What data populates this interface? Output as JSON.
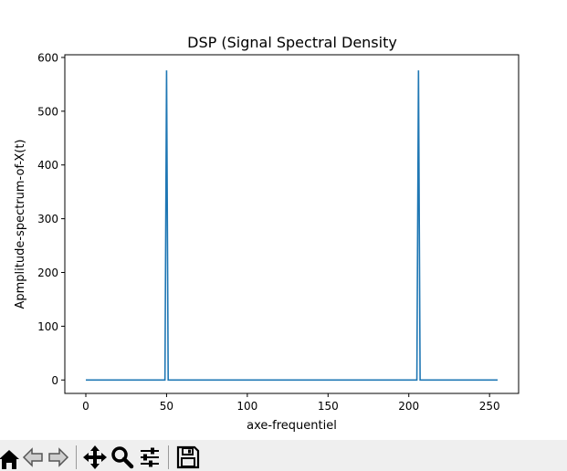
{
  "chart_data": {
    "type": "line",
    "title": "DSP (Signal Spectral Density",
    "xlabel": "axe-frequentiel",
    "ylabel": "Apmplitude-spectrum-of-X(t)",
    "xlim": [
      -13,
      268
    ],
    "ylim": [
      -25,
      605
    ],
    "xticks": [
      0,
      50,
      100,
      150,
      200,
      250
    ],
    "yticks": [
      0,
      100,
      200,
      300,
      400,
      500,
      600
    ],
    "series": [
      {
        "color": "#1f77b4",
        "x": [
          0,
          49,
          50,
          51,
          205,
          206,
          207,
          255
        ],
        "y": [
          0,
          0,
          576,
          0,
          0,
          576,
          0,
          0
        ]
      }
    ]
  },
  "toolbar": {
    "buttons": [
      {
        "name": "home-button",
        "icon": "home-icon"
      },
      {
        "name": "back-button",
        "icon": "back-arrow-icon"
      },
      {
        "name": "forward-button",
        "icon": "forward-arrow-icon"
      },
      {
        "name": "pan-button",
        "icon": "pan-icon"
      },
      {
        "name": "zoom-button",
        "icon": "zoom-icon"
      },
      {
        "name": "configure-subplots-button",
        "icon": "sliders-icon"
      },
      {
        "name": "save-button",
        "icon": "floppy-disk-icon"
      }
    ]
  }
}
